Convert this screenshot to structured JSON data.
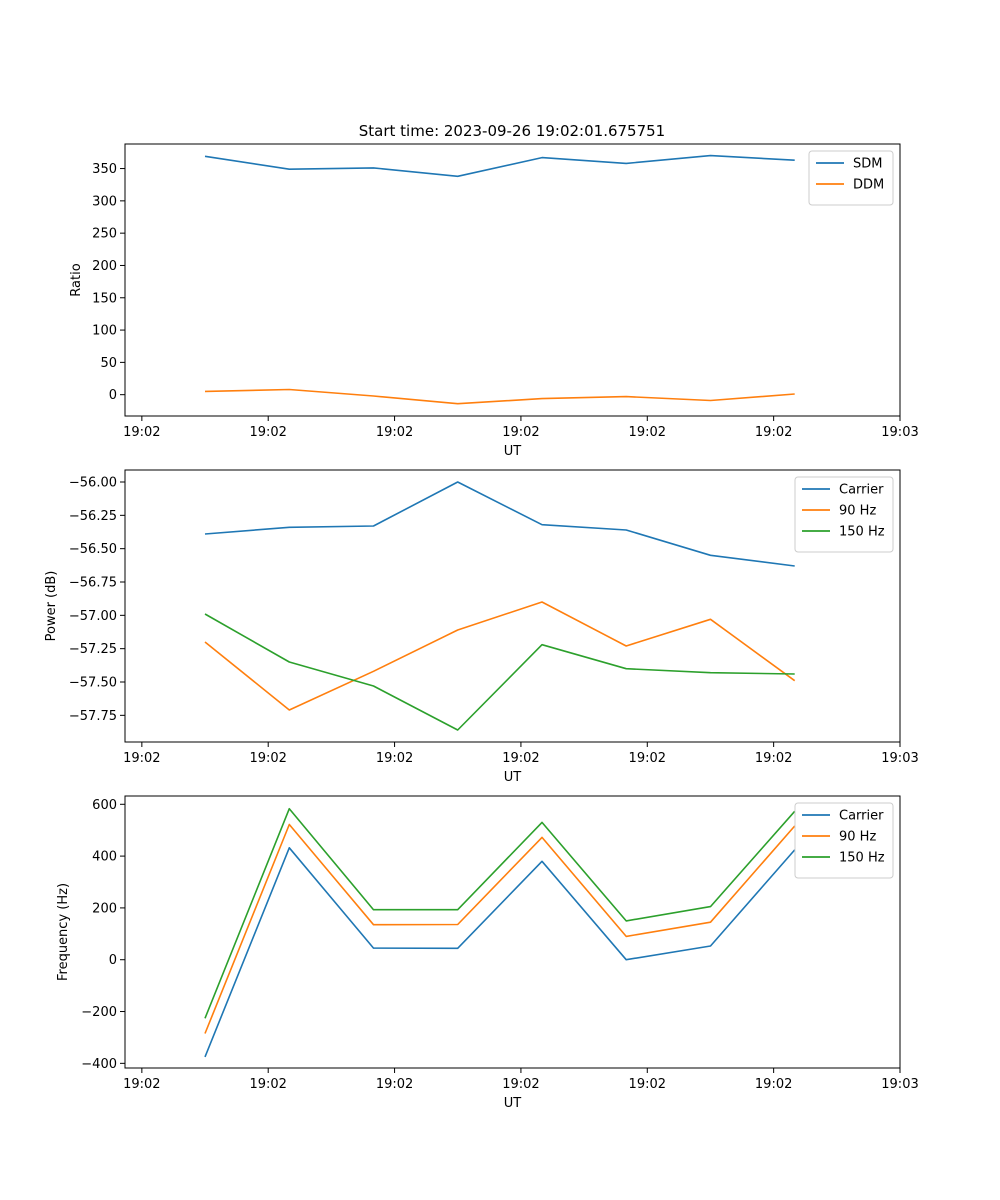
{
  "figure_title": "Start time: 2023-09-26 19:02:01.675751",
  "chart_data": [
    {
      "type": "line",
      "title": "Start time: 2023-09-26 19:02:01.675751",
      "xlabel": "UT",
      "ylabel": "Ratio",
      "x": [
        0.75,
        1.75,
        2.75,
        3.75,
        4.75,
        5.75,
        6.75,
        7.75
      ],
      "xlim": [
        -0.2,
        9.0
      ],
      "xticks": [
        0,
        1.5,
        3,
        4.5,
        6,
        7.5,
        9
      ],
      "xtick_labels": [
        "19:02",
        "19:02",
        "19:02",
        "19:02",
        "19:02",
        "19:02",
        "19:03"
      ],
      "ylim": [
        -33,
        388
      ],
      "yticks": [
        0,
        50,
        100,
        150,
        200,
        250,
        300,
        350
      ],
      "ytick_labels": [
        "0",
        "50",
        "100",
        "150",
        "200",
        "250",
        "300",
        "350"
      ],
      "legend_position": "top-right",
      "series": [
        {
          "name": "SDM",
          "color": "#1f77b4",
          "values": [
            369,
            349,
            351,
            338,
            367,
            358,
            370,
            363
          ]
        },
        {
          "name": "DDM",
          "color": "#ff7f0e",
          "values": [
            5,
            8,
            -2,
            -14,
            -6,
            -3,
            -9,
            1
          ]
        }
      ]
    },
    {
      "type": "line",
      "title": "",
      "xlabel": "UT",
      "ylabel": "Power (dB)",
      "x": [
        0.75,
        1.75,
        2.75,
        3.75,
        4.75,
        5.75,
        6.75,
        7.75
      ],
      "xlim": [
        -0.2,
        9.0
      ],
      "xticks": [
        0,
        1.5,
        3,
        4.5,
        6,
        7.5,
        9
      ],
      "xtick_labels": [
        "19:02",
        "19:02",
        "19:02",
        "19:02",
        "19:02",
        "19:02",
        "19:03"
      ],
      "ylim": [
        -57.95,
        -55.91
      ],
      "yticks": [
        -57.75,
        -57.5,
        -57.25,
        -57.0,
        -56.75,
        -56.5,
        -56.25,
        -56.0
      ],
      "ytick_labels": [
        "−57.75",
        "−57.50",
        "−57.25",
        "−57.00",
        "−56.75",
        "−56.50",
        "−56.25",
        "−56.00"
      ],
      "legend_position": "top-right",
      "series": [
        {
          "name": "Carrier",
          "color": "#1f77b4",
          "values": [
            -56.39,
            -56.34,
            -56.33,
            -56.0,
            -56.32,
            -56.36,
            -56.55,
            -56.63
          ]
        },
        {
          "name": "90 Hz",
          "color": "#ff7f0e",
          "values": [
            -57.2,
            -57.71,
            -57.42,
            -57.11,
            -56.9,
            -57.23,
            -57.03,
            -57.49
          ]
        },
        {
          "name": "150 Hz",
          "color": "#2ca02c",
          "values": [
            -56.99,
            -57.35,
            -57.53,
            -57.86,
            -57.22,
            -57.4,
            -57.43,
            -57.44
          ]
        }
      ]
    },
    {
      "type": "line",
      "title": "",
      "xlabel": "UT",
      "ylabel": "Frequency (Hz)",
      "x": [
        0.75,
        1.75,
        2.75,
        3.75,
        4.75,
        5.75,
        6.75,
        7.75
      ],
      "xlim": [
        -0.2,
        9.0
      ],
      "xticks": [
        0,
        1.5,
        3,
        4.5,
        6,
        7.5,
        9
      ],
      "xtick_labels": [
        "19:02",
        "19:02",
        "19:02",
        "19:02",
        "19:02",
        "19:02",
        "19:03"
      ],
      "ylim": [
        -418,
        632
      ],
      "yticks": [
        -400,
        -200,
        0,
        200,
        400,
        600
      ],
      "ytick_labels": [
        "−400",
        "−200",
        "0",
        "200",
        "400",
        "600"
      ],
      "legend_position": "top-right",
      "series": [
        {
          "name": "Carrier",
          "color": "#1f77b4",
          "values": [
            -375,
            432,
            45,
            44,
            380,
            0,
            53,
            424
          ]
        },
        {
          "name": "90 Hz",
          "color": "#ff7f0e",
          "values": [
            -285,
            522,
            135,
            136,
            472,
            90,
            145,
            516
          ]
        },
        {
          "name": "150 Hz",
          "color": "#2ca02c",
          "values": [
            -226,
            583,
            193,
            193,
            530,
            150,
            205,
            573
          ]
        }
      ]
    }
  ]
}
